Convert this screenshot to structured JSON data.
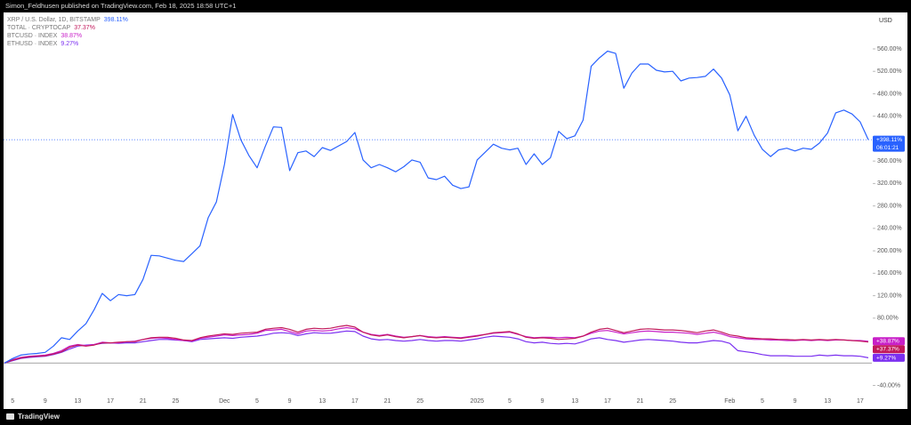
{
  "header": "Simon_Feldhusen published on TradingView.com, Feb 18, 2025 18:58 UTC+1",
  "footer": "TradingView",
  "chart_data": {
    "type": "line",
    "currency": "USD",
    "countdown": "06:01:21",
    "categories": [
      null,
      "5",
      null,
      null,
      null,
      "9",
      null,
      null,
      null,
      "13",
      null,
      null,
      null,
      "17",
      null,
      null,
      null,
      "21",
      null,
      null,
      null,
      "25",
      null,
      null,
      null,
      null,
      null,
      "Dec",
      null,
      null,
      null,
      "5",
      null,
      null,
      null,
      "9",
      null,
      null,
      null,
      "13",
      null,
      null,
      null,
      "17",
      null,
      null,
      null,
      "21",
      null,
      null,
      null,
      "25",
      null,
      null,
      null,
      null,
      null,
      null,
      "2025",
      null,
      null,
      null,
      "5",
      null,
      null,
      null,
      "9",
      null,
      null,
      null,
      "13",
      null,
      null,
      null,
      "17",
      null,
      null,
      null,
      "21",
      null,
      null,
      null,
      "25",
      null,
      null,
      null,
      null,
      null,
      null,
      "Feb",
      null,
      null,
      null,
      "5",
      null,
      null,
      null,
      "9",
      null,
      null,
      null,
      "13",
      null,
      null,
      null,
      "17",
      null
    ],
    "ylim": [
      -82,
      625
    ],
    "yticks": [
      {
        "value": 560,
        "label": "560.00%"
      },
      {
        "value": 520,
        "label": "520.00%"
      },
      {
        "value": 480,
        "label": "480.00%"
      },
      {
        "value": 440,
        "label": "440.00%"
      },
      {
        "value": 360,
        "label": "360.00%"
      },
      {
        "value": 320,
        "label": "320.00%"
      },
      {
        "value": 280,
        "label": "280.00%"
      },
      {
        "value": 240,
        "label": "240.00%"
      },
      {
        "value": 200,
        "label": "200.00%"
      },
      {
        "value": 160,
        "label": "160.00%"
      },
      {
        "value": 120,
        "label": "120.00%"
      },
      {
        "value": 80,
        "label": "80.00%"
      },
      {
        "value": -40,
        "label": "-40.00%"
      }
    ],
    "series": [
      {
        "name": "XRP / U.S. Dollar, 1D, BITSTAMP",
        "color": "#2962ff",
        "last_label": "398.11%",
        "badge_label": "+398.11%",
        "values": [
          0,
          8,
          14,
          16,
          17,
          19,
          30,
          45,
          42,
          57,
          70,
          95,
          124,
          111,
          122,
          120,
          122,
          149,
          192,
          191,
          187,
          183,
          181,
          195,
          209,
          259,
          287,
          354,
          443,
          398,
          370,
          348,
          386,
          421,
          420,
          343,
          375,
          378,
          368,
          384,
          379,
          387,
          395,
          411,
          362,
          348,
          354,
          348,
          341,
          350,
          362,
          358,
          330,
          327,
          333,
          317,
          311,
          314,
          362,
          376,
          390,
          383,
          380,
          383,
          354,
          373,
          354,
          366,
          413,
          400,
          405,
          433,
          529,
          544,
          556,
          552,
          490,
          517,
          533,
          533,
          522,
          519,
          520,
          503,
          508,
          509,
          511,
          524,
          508,
          478,
          414,
          440,
          406,
          381,
          368,
          380,
          383,
          378,
          383,
          381,
          392,
          410,
          446,
          451,
          444,
          430,
          398.11
        ]
      },
      {
        "name": "TOTAL · CRYPTOCAP",
        "color": "#c2185b",
        "last_label": "37.37%",
        "badge_label": "+37.37%",
        "values": [
          0,
          5,
          9,
          11,
          12,
          13,
          16,
          20,
          28,
          32,
          30,
          32,
          36,
          36,
          37,
          38,
          38,
          42,
          45,
          46,
          46,
          44,
          41,
          40,
          45,
          48,
          50,
          52,
          51,
          53,
          54,
          55,
          60,
          62,
          63,
          60,
          55,
          60,
          62,
          61,
          62,
          65,
          67,
          64,
          55,
          50,
          48,
          50,
          47,
          45,
          47,
          49,
          46,
          45,
          46,
          45,
          44,
          46,
          48,
          51,
          54,
          55,
          56,
          52,
          46,
          44,
          45,
          44,
          42,
          43,
          44,
          48,
          55,
          60,
          62,
          58,
          54,
          57,
          60,
          61,
          60,
          59,
          59,
          58,
          56,
          54,
          57,
          59,
          55,
          50,
          48,
          45,
          44,
          43,
          43,
          42,
          42,
          41,
          42,
          41,
          42,
          41,
          42,
          41,
          40,
          39,
          37.37
        ]
      },
      {
        "name": "BTCUSD · INDEX",
        "color": "#c81fc8",
        "last_label": "38.87%",
        "badge_label": "+38.87%",
        "values": [
          0,
          6,
          10,
          12,
          13,
          14,
          17,
          22,
          30,
          33,
          31,
          33,
          37,
          36,
          36,
          38,
          39,
          42,
          44,
          45,
          44,
          42,
          40,
          39,
          44,
          46,
          48,
          50,
          49,
          50,
          51,
          53,
          58,
          59,
          60,
          56,
          52,
          57,
          58,
          57,
          58,
          61,
          63,
          61,
          55,
          51,
          49,
          51,
          48,
          46,
          47,
          49,
          47,
          46,
          47,
          46,
          45,
          47,
          49,
          51,
          53,
          54,
          55,
          51,
          47,
          45,
          46,
          46,
          45,
          46,
          45,
          48,
          53,
          57,
          58,
          55,
          52,
          54,
          56,
          57,
          56,
          55,
          55,
          54,
          53,
          51,
          53,
          55,
          52,
          47,
          45,
          43,
          42,
          42,
          41,
          41,
          40,
          40,
          41,
          40,
          41,
          40,
          41,
          41,
          40,
          40,
          38.87
        ]
      },
      {
        "name": "ETHUSD · INDEX",
        "color": "#7b2ff0",
        "last_label": "9.27%",
        "badge_label": "+9.27%",
        "values": [
          0,
          4,
          8,
          10,
          11,
          12,
          15,
          19,
          25,
          30,
          32,
          33,
          35,
          36,
          35,
          36,
          36,
          38,
          40,
          42,
          42,
          41,
          40,
          38,
          42,
          43,
          44,
          45,
          44,
          46,
          47,
          48,
          50,
          53,
          54,
          53,
          49,
          52,
          54,
          53,
          53,
          55,
          57,
          56,
          48,
          43,
          41,
          42,
          40,
          39,
          40,
          42,
          40,
          39,
          40,
          40,
          39,
          41,
          43,
          46,
          48,
          47,
          46,
          43,
          38,
          36,
          37,
          35,
          34,
          35,
          34,
          38,
          43,
          45,
          42,
          40,
          37,
          39,
          41,
          42,
          41,
          40,
          39,
          37,
          36,
          36,
          38,
          40,
          39,
          35,
          22,
          20,
          18,
          15,
          13,
          13,
          13,
          12,
          12,
          12,
          14,
          13,
          14,
          13,
          13,
          12,
          9.27
        ]
      }
    ]
  }
}
